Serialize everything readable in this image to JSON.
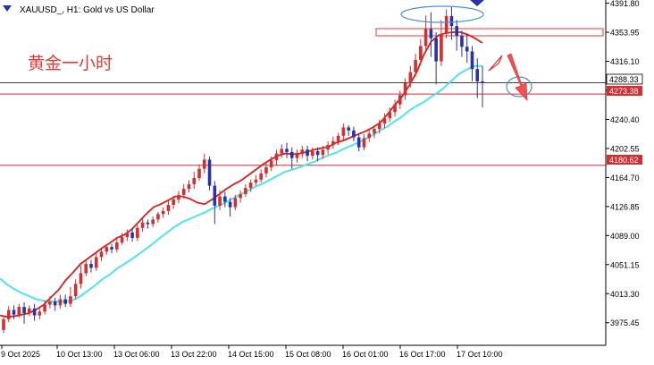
{
  "window": {
    "symbol_title": "XAUUSD_, H1:  Gold vs US Dollar",
    "annotation_text": "黄金一小时"
  },
  "colors": {
    "background": "#ffffff",
    "bull_candle": "#d32f2f",
    "bear_candle": "#2633a8",
    "ma_fast": "#e01b1b",
    "ma_slow": "#4fe3f0",
    "level_line": "#d32f2f",
    "price_line": "#000000",
    "ellipse": "#4a90d9",
    "arrow": "#e53935"
  },
  "icons": {
    "symbol_dropdown": "triangle-down-icon",
    "top_marker": "triangle-down-icon"
  },
  "chart_data": {
    "type": "candlestick",
    "title": "XAUUSD_, H1:  Gold vs US Dollar",
    "y_axis_labels": [
      "4391.80",
      "4353.95",
      "4316.10",
      "4288.33",
      "4273.38",
      "4240.40",
      "4202.55",
      "4180.62",
      "4164.70",
      "4126.85",
      "4089.00",
      "4051.15",
      "4013.30",
      "3975.45"
    ],
    "y_ticks": [
      4391.8,
      4353.95,
      4316.1,
      4278.25,
      4240.4,
      4202.55,
      4164.7,
      4126.85,
      4089.0,
      4051.15,
      4013.3,
      3975.45
    ],
    "ylim": [
      3946,
      4396
    ],
    "x_labels": [
      "9 Oct 2025",
      "10 Oct 13:00",
      "13 Oct 06:00",
      "13 Oct 22:00",
      "14 Oct 15:00",
      "15 Oct 08:00",
      "16 Oct 01:00",
      "16 Oct 17:00",
      "17 Oct 10:00"
    ],
    "current_price": 4288.33,
    "levels": [
      {
        "price": 4273.38,
        "label": "4273.38"
      },
      {
        "price": 4180.62,
        "label": "4180.62"
      }
    ],
    "resistance_zone": {
      "upper": 4358,
      "lower": 4349
    },
    "annotation": "黄金一小时",
    "ma_fast_values": [
      3985,
      3983,
      3984,
      3986,
      3988,
      3993,
      3999,
      4009,
      4018,
      4031,
      4041,
      4052,
      4059,
      4066,
      4073,
      4079,
      4086,
      4090,
      4097,
      4107,
      4117,
      4126,
      4130,
      4135,
      4140,
      4140,
      4137,
      4132,
      4130,
      4136,
      4143,
      4150,
      4156,
      4161,
      4168,
      4175,
      4182,
      4188,
      4193,
      4196,
      4195,
      4196,
      4198,
      4201,
      4203,
      4205,
      4210,
      4213,
      4217,
      4221,
      4225,
      4230,
      4236,
      4247,
      4259,
      4270,
      4285,
      4302,
      4325,
      4342,
      4350,
      4353,
      4354,
      4354,
      4351,
      4346,
      4340
    ],
    "ma_slow_values": [
      4033,
      4025,
      4019,
      4014,
      4010,
      4006,
      4004,
      4003,
      4003,
      4003,
      4005,
      4010,
      4017,
      4024,
      4032,
      4038,
      4046,
      4052,
      4058,
      4065,
      4072,
      4079,
      4087,
      4094,
      4101,
      4107,
      4111,
      4115,
      4119,
      4124,
      4128,
      4133,
      4138,
      4143,
      4148,
      4153,
      4157,
      4162,
      4167,
      4172,
      4175,
      4178,
      4182,
      4185,
      4190,
      4194,
      4197,
      4202,
      4206,
      4210,
      4215,
      4220,
      4226,
      4231,
      4238,
      4244,
      4252,
      4258,
      4263,
      4270,
      4276,
      4284,
      4293,
      4301,
      4306,
      4310,
      4310
    ],
    "candles": [
      [
        3966,
        3980,
        3962,
        3984
      ],
      [
        3980,
        3992,
        3976,
        3997
      ],
      [
        3992,
        3986,
        3980,
        3998
      ],
      [
        3986,
        3996,
        3982,
        4000
      ],
      [
        3996,
        3988,
        3974,
        4002
      ],
      [
        3988,
        3994,
        3984,
        3998
      ],
      [
        3994,
        3985,
        3978,
        4000
      ],
      [
        3985,
        3990,
        3980,
        3996
      ],
      [
        3990,
        3999,
        3986,
        4004
      ],
      [
        3999,
        4003,
        3994,
        4010
      ],
      [
        4003,
        3998,
        3991,
        4008
      ],
      [
        3998,
        4006,
        3994,
        4012
      ],
      [
        4006,
        4000,
        3996,
        4012
      ],
      [
        4000,
        4010,
        3996,
        4022
      ],
      [
        4010,
        4026,
        4006,
        4032
      ],
      [
        4026,
        4040,
        4020,
        4050
      ],
      [
        4040,
        4052,
        4036,
        4058
      ],
      [
        4052,
        4047,
        4041,
        4057
      ],
      [
        4047,
        4061,
        4043,
        4067
      ],
      [
        4061,
        4068,
        4056,
        4072
      ],
      [
        4068,
        4074,
        4064,
        4078
      ],
      [
        4074,
        4071,
        4066,
        4078
      ],
      [
        4071,
        4080,
        4067,
        4085
      ],
      [
        4080,
        4087,
        4077,
        4092
      ],
      [
        4087,
        4093,
        4082,
        4097
      ],
      [
        4093,
        4086,
        4081,
        4099
      ],
      [
        4086,
        4099,
        4082,
        4103
      ],
      [
        4099,
        4106,
        4094,
        4111
      ],
      [
        4106,
        4104,
        4098,
        4110
      ],
      [
        4104,
        4110,
        4100,
        4114
      ],
      [
        4110,
        4117,
        4106,
        4120
      ],
      [
        4117,
        4121,
        4112,
        4126
      ],
      [
        4121,
        4129,
        4116,
        4134
      ],
      [
        4129,
        4136,
        4124,
        4141
      ],
      [
        4136,
        4142,
        4131,
        4147
      ],
      [
        4142,
        4150,
        4137,
        4156
      ],
      [
        4150,
        4156,
        4145,
        4161
      ],
      [
        4156,
        4164,
        4150,
        4172
      ],
      [
        4164,
        4176,
        4160,
        4182
      ],
      [
        4176,
        4188,
        4170,
        4196
      ],
      [
        4188,
        4154,
        4148,
        4192
      ],
      [
        4154,
        4128,
        4104,
        4160
      ],
      [
        4128,
        4140,
        4122,
        4148
      ],
      [
        4140,
        4133,
        4126,
        4146
      ],
      [
        4133,
        4126,
        4114,
        4138
      ],
      [
        4126,
        4138,
        4122,
        4142
      ],
      [
        4138,
        4143,
        4132,
        4148
      ],
      [
        4143,
        4151,
        4139,
        4156
      ],
      [
        4151,
        4158,
        4146,
        4162
      ],
      [
        4158,
        4162,
        4154,
        4168
      ],
      [
        4162,
        4170,
        4158,
        4175
      ],
      [
        4170,
        4178,
        4165,
        4184
      ],
      [
        4178,
        4187,
        4173,
        4192
      ],
      [
        4187,
        4196,
        4180,
        4201
      ],
      [
        4196,
        4202,
        4190,
        4208
      ],
      [
        4202,
        4198,
        4190,
        4210
      ],
      [
        4198,
        4190,
        4176,
        4204
      ],
      [
        4190,
        4195,
        4184,
        4201
      ],
      [
        4195,
        4201,
        4190,
        4206
      ],
      [
        4201,
        4193,
        4186,
        4206
      ],
      [
        4193,
        4199,
        4188,
        4204
      ],
      [
        4199,
        4194,
        4186,
        4204
      ],
      [
        4194,
        4201,
        4189,
        4206
      ],
      [
        4201,
        4207,
        4195,
        4212
      ],
      [
        4207,
        4212,
        4202,
        4218
      ],
      [
        4212,
        4219,
        4207,
        4223
      ],
      [
        4219,
        4230,
        4213,
        4235
      ],
      [
        4230,
        4226,
        4219,
        4233
      ],
      [
        4226,
        4217,
        4212,
        4231
      ],
      [
        4217,
        4204,
        4199,
        4222
      ],
      [
        4204,
        4216,
        4200,
        4221
      ],
      [
        4216,
        4222,
        4211,
        4227
      ],
      [
        4222,
        4228,
        4216,
        4233
      ],
      [
        4228,
        4235,
        4222,
        4240
      ],
      [
        4235,
        4242,
        4229,
        4248
      ],
      [
        4242,
        4250,
        4237,
        4256
      ],
      [
        4250,
        4260,
        4244,
        4266
      ],
      [
        4260,
        4272,
        4254,
        4278
      ],
      [
        4272,
        4288,
        4266,
        4294
      ],
      [
        4288,
        4302,
        4282,
        4310
      ],
      [
        4302,
        4318,
        4296,
        4326
      ],
      [
        4318,
        4336,
        4311,
        4345
      ],
      [
        4336,
        4358,
        4330,
        4376
      ],
      [
        4358,
        4346,
        4322,
        4380
      ],
      [
        4346,
        4316,
        4286,
        4354
      ],
      [
        4316,
        4352,
        4310,
        4370
      ],
      [
        4352,
        4375,
        4346,
        4384
      ],
      [
        4375,
        4362,
        4344,
        4387
      ],
      [
        4362,
        4349,
        4330,
        4370
      ],
      [
        4349,
        4335,
        4322,
        4356
      ],
      [
        4335,
        4329,
        4314,
        4352
      ],
      [
        4329,
        4306,
        4290,
        4336
      ],
      [
        4306,
        4290,
        4268,
        4320
      ],
      [
        4290,
        4288,
        4256,
        4310
      ]
    ]
  }
}
